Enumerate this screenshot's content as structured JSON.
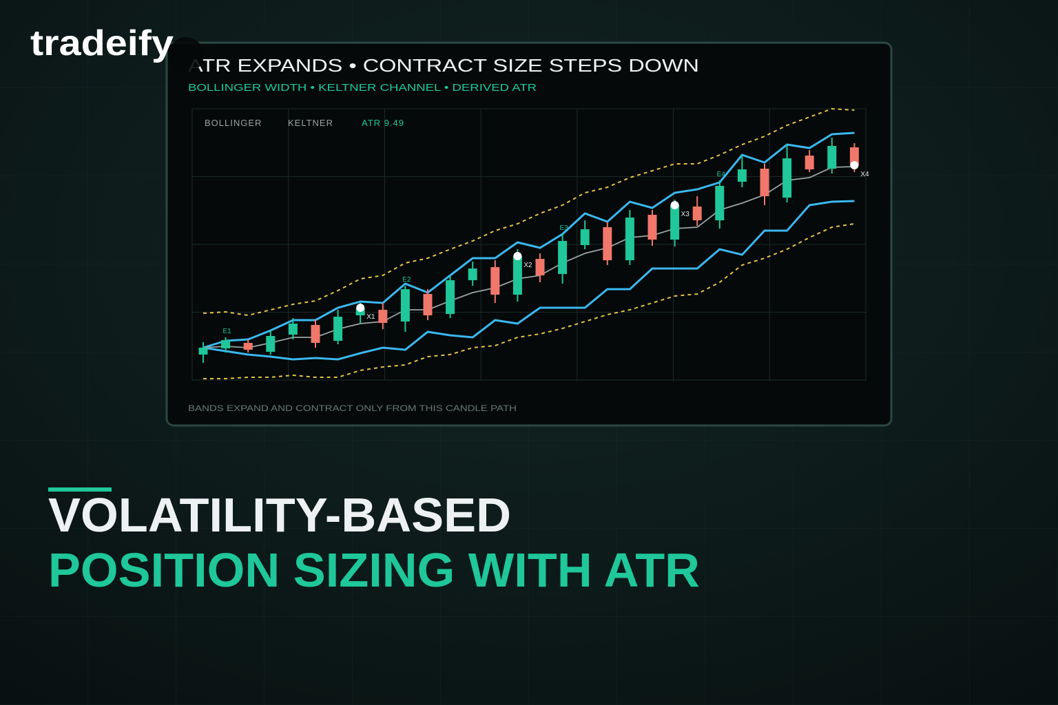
{
  "brand": "tradeify",
  "headline": {
    "line1": "VOLATILITY-BASED",
    "line2": "POSITION SIZING WITH ATR"
  },
  "chart_data": {
    "type": "candlestick",
    "title": "ATR EXPANDS • CONTRACT SIZE STEPS DOWN",
    "subtitle": "BOLLINGER WIDTH • KELTNER CHANNEL • DERIVED ATR",
    "footnote": "BANDS EXPAND AND CONTRACT ONLY FROM THIS CANDLE PATH",
    "legend_labels": [
      "BOLLINGER",
      "KELTNER",
      "ATR 9.49"
    ],
    "categories": [
      null,
      null,
      null,
      null,
      null,
      null,
      null,
      null,
      null,
      null,
      null,
      null,
      null,
      null,
      null,
      null,
      null,
      null,
      null,
      null,
      null,
      null,
      null,
      null,
      null,
      null,
      null,
      null,
      null,
      null
    ],
    "open": [
      37,
      46,
      54,
      41,
      66,
      80,
      57,
      94,
      102,
      85,
      125,
      96,
      145,
      164,
      124,
      176,
      154,
      196,
      222,
      174,
      240,
      204,
      252,
      232,
      288,
      307,
      265,
      326,
      307,
      338
    ],
    "high": [
      55,
      62,
      59,
      72,
      90,
      88,
      102,
      112,
      112,
      137,
      132,
      152,
      172,
      174,
      190,
      184,
      212,
      232,
      230,
      247,
      247,
      262,
      267,
      290,
      327,
      314,
      342,
      334,
      352,
      344
    ],
    "low": [
      25,
      40,
      40,
      37,
      59,
      47,
      52,
      82,
      74,
      70,
      87,
      90,
      137,
      112,
      114,
      142,
      140,
      190,
      167,
      167,
      195,
      194,
      224,
      220,
      280,
      254,
      258,
      302,
      300,
      302
    ],
    "close": [
      47,
      58,
      44,
      64,
      82,
      54,
      92,
      104,
      83,
      132,
      94,
      145,
      162,
      124,
      180,
      152,
      202,
      219,
      174,
      236,
      204,
      254,
      232,
      282,
      306,
      267,
      322,
      306,
      340,
      312
    ],
    "up_color": "#1fc79a",
    "down_color": "#f0776a",
    "series": [
      {
        "color": "#e8c34a",
        "dashed": true,
        "values": [
          97,
          99,
          94,
          102,
          110,
          115,
          130,
          147,
          152,
          170,
          177,
          190,
          202,
          217,
          227,
          242,
          254,
          272,
          280,
          294,
          304,
          314,
          314,
          327,
          342,
          354,
          370,
          382,
          394,
          392
        ]
      },
      {
        "color": "#e8c34a",
        "dashed": true,
        "values": [
          2,
          2,
          4,
          4,
          7,
          4,
          4,
          14,
          19,
          22,
          34,
          37,
          47,
          50,
          62,
          67,
          75,
          85,
          95,
          102,
          112,
          122,
          125,
          142,
          167,
          177,
          190,
          207,
          222,
          227
        ]
      },
      {
        "color": "#3bb8f0",
        "dashed": false,
        "values": [
          47,
          57,
          59,
          72,
          87,
          87,
          105,
          114,
          112,
          140,
          127,
          152,
          177,
          177,
          200,
          192,
          212,
          242,
          230,
          259,
          250,
          272,
          277,
          287,
          327,
          316,
          342,
          337,
          357,
          359
        ]
      },
      {
        "color": "#3bb8f0",
        "dashed": false,
        "values": [
          47,
          42,
          37,
          34,
          30,
          32,
          30,
          39,
          47,
          44,
          70,
          65,
          62,
          87,
          82,
          105,
          105,
          105,
          132,
          132,
          162,
          162,
          162,
          190,
          182,
          217,
          217,
          254,
          259,
          260
        ]
      },
      {
        "color": "#9aa3a3",
        "dashed": false,
        "values": [
          47,
          49,
          47,
          54,
          62,
          62,
          74,
          82,
          85,
          102,
          102,
          115,
          127,
          134,
          147,
          152,
          170,
          184,
          192,
          207,
          210,
          220,
          222,
          247,
          257,
          269,
          290,
          294,
          309,
          310
        ]
      }
    ],
    "entries": [
      {
        "label": "E1",
        "index": 1
      },
      {
        "label": "E2",
        "index": 9
      },
      {
        "label": "E3",
        "index": 16
      },
      {
        "label": "E4",
        "index": 23
      }
    ],
    "exits": [
      {
        "label": "X1",
        "index": 7,
        "value": 105
      },
      {
        "label": "X2",
        "index": 14,
        "value": 180
      },
      {
        "label": "X3",
        "index": 21,
        "value": 254
      },
      {
        "label": "X4",
        "index": 29,
        "value": 312
      }
    ],
    "ylim": [
      0,
      394
    ],
    "grid": true
  }
}
